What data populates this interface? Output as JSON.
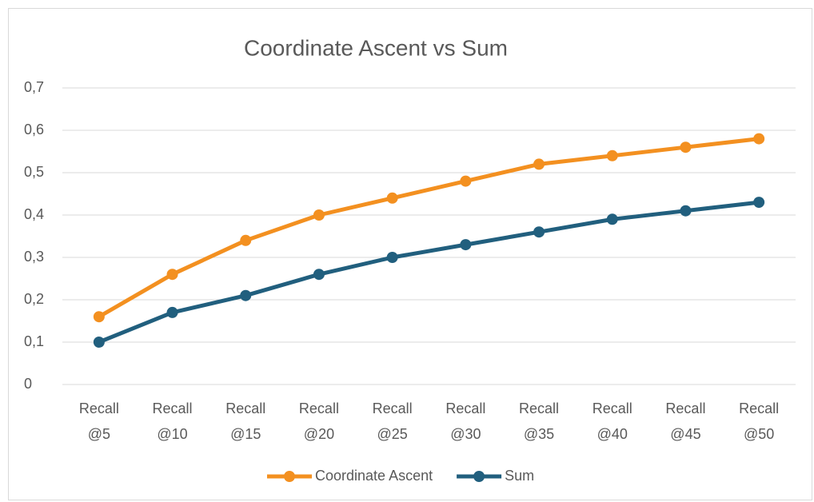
{
  "chart_data": {
    "type": "line",
    "title": "Coordinate Ascent vs Sum",
    "categories": [
      "Recall @5",
      "Recall @10",
      "Recall @15",
      "Recall @20",
      "Recall @25",
      "Recall @30",
      "Recall @35",
      "Recall @40",
      "Recall @45",
      "Recall @50"
    ],
    "series": [
      {
        "name": "Coordinate Ascent",
        "color": "#f39020",
        "values": [
          0.16,
          0.26,
          0.34,
          0.4,
          0.44,
          0.48,
          0.52,
          0.54,
          0.56,
          0.58
        ]
      },
      {
        "name": "Sum",
        "color": "#215f7e",
        "values": [
          0.1,
          0.17,
          0.21,
          0.26,
          0.3,
          0.33,
          0.36,
          0.39,
          0.41,
          0.43
        ]
      }
    ],
    "ylim": [
      0,
      0.7
    ],
    "yticks": [
      0,
      {
        "value": 0.1,
        "label": "0,1"
      },
      {
        "value": 0.2,
        "label": "0,2"
      },
      {
        "value": 0.3,
        "label": "0,3"
      },
      {
        "value": 0.4,
        "label": "0,4"
      },
      {
        "value": 0.5,
        "label": "0,5"
      },
      {
        "value": 0.6,
        "label": "0,6"
      },
      {
        "value": 0.7,
        "label": "0,7"
      }
    ],
    "grid": true,
    "legend": "bottom"
  }
}
